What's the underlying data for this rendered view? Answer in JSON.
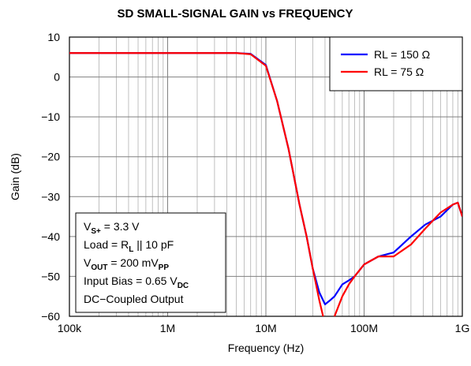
{
  "chart_data": {
    "type": "line",
    "title": "SD SMALL-SIGNAL GAIN vs FREQUENCY",
    "xlabel": "Frequency (Hz)",
    "ylabel": "Gain (dB)",
    "xscale": "log",
    "xlim": [
      100000,
      1000000000
    ],
    "xticks": [
      {
        "value": 100000,
        "label": "100k"
      },
      {
        "value": 1000000,
        "label": "1M"
      },
      {
        "value": 10000000,
        "label": "10M"
      },
      {
        "value": 100000000,
        "label": "100M"
      },
      {
        "value": 1000000000,
        "label": "1G"
      }
    ],
    "ylim": [
      -60,
      10
    ],
    "yticks": [
      {
        "value": -60,
        "label": "−60"
      },
      {
        "value": -50,
        "label": "−50"
      },
      {
        "value": -40,
        "label": "−40"
      },
      {
        "value": -30,
        "label": "−30"
      },
      {
        "value": -20,
        "label": "−20"
      },
      {
        "value": -10,
        "label": "−10"
      },
      0,
      10
    ],
    "grid": true,
    "legend": "upper right",
    "x": [
      100000,
      1000000,
      3000000,
      5000000,
      7000000,
      10000000,
      13000000,
      17000000,
      22000000,
      26000000,
      30000000,
      35000000,
      40000000,
      45000000,
      50000000,
      60000000,
      70000000,
      80000000,
      100000000,
      140000000,
      200000000,
      300000000,
      420000000,
      600000000,
      800000000,
      900000000,
      1000000000
    ],
    "series": [
      {
        "name": "RL = 150 Ω",
        "color": "#0000ff",
        "values": [
          6,
          6,
          6,
          6,
          5.8,
          3,
          -6,
          -18,
          -32,
          -40,
          -48,
          -54,
          -57,
          -56,
          -55,
          -52,
          -51,
          -50,
          -47,
          -45,
          -44,
          -40,
          -37,
          -35,
          -32,
          -31.5,
          -35
        ]
      },
      {
        "name": "RL = 75 Ω",
        "color": "#ff0000",
        "values": [
          6,
          6,
          6,
          6,
          5.7,
          2.8,
          -6,
          -18,
          -32,
          -40,
          -48,
          -56,
          -62,
          -64,
          -60,
          -55,
          -52,
          -50,
          -47,
          -45,
          -45,
          -42,
          -38,
          -34,
          -32,
          -31.5,
          -35
        ]
      }
    ],
    "annotation": [
      [
        {
          "text": "V"
        },
        {
          "text": "S+",
          "sub": true
        },
        {
          "text": " = 3.3 V"
        }
      ],
      [
        {
          "text": "Load = R"
        },
        {
          "text": "L",
          "sub": true
        },
        {
          "text": " || 10 pF"
        }
      ],
      [
        {
          "text": "V"
        },
        {
          "text": "OUT",
          "sub": true
        },
        {
          "text": " = 200 mV"
        },
        {
          "text": "PP",
          "sub": true
        }
      ],
      [
        {
          "text": "Input Bias = 0.65 V"
        },
        {
          "text": "DC",
          "sub": true
        }
      ],
      [
        {
          "text": "DC−Coupled Output"
        }
      ]
    ]
  }
}
